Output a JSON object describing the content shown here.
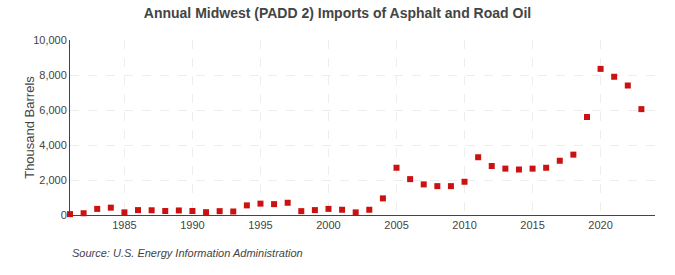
{
  "chart_data": {
    "type": "scatter",
    "title": "Annual Midwest (PADD 2) Imports of Asphalt and Road Oil",
    "ylabel": "Thousand Barrels",
    "annotations": [
      "Source: U.S. Energy Information Administration"
    ],
    "x": [
      1981,
      1982,
      1983,
      1984,
      1985,
      1986,
      1987,
      1988,
      1989,
      1990,
      1991,
      1992,
      1993,
      1994,
      1995,
      1996,
      1997,
      1998,
      1999,
      2000,
      2001,
      2002,
      2003,
      2004,
      2005,
      2006,
      2007,
      2008,
      2009,
      2010,
      2011,
      2012,
      2013,
      2014,
      2015,
      2016,
      2017,
      2018,
      2019,
      2020,
      2021,
      2022,
      2023
    ],
    "values": [
      50,
      100,
      350,
      420,
      150,
      280,
      270,
      230,
      260,
      230,
      160,
      220,
      200,
      550,
      650,
      620,
      700,
      220,
      280,
      350,
      300,
      150,
      300,
      950,
      2700,
      2050,
      1750,
      1650,
      1650,
      1900,
      3300,
      2800,
      2650,
      2600,
      2650,
      2700,
      3100,
      3450,
      5600,
      8350,
      7900,
      7400,
      6050
    ],
    "color": "#cc1111",
    "marker": "square",
    "ylim": [
      0,
      10000
    ],
    "yticks": [
      0,
      {
        "value": 2000,
        "label": "2,000"
      },
      {
        "value": 4000,
        "label": "4,000"
      },
      {
        "value": 6000,
        "label": "6,000"
      },
      {
        "value": 8000,
        "label": "8,000"
      },
      {
        "value": 10000,
        "label": "10,000"
      }
    ],
    "xlim": [
      1981,
      2024
    ],
    "xticks": [
      1985,
      1990,
      1995,
      2000,
      2005,
      2010,
      2015,
      2020
    ],
    "grid": true
  }
}
